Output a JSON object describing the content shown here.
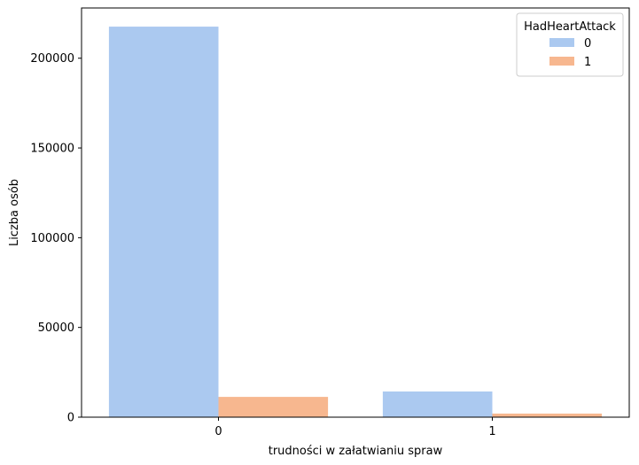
{
  "chart_data": {
    "type": "bar",
    "title": "",
    "xlabel": "trudności w załatwianiu spraw",
    "ylabel": "Liczba osób",
    "categories": [
      "0",
      "1"
    ],
    "series": [
      {
        "name": "0",
        "color": "#abc9f0",
        "values": [
          217600,
          14300
        ]
      },
      {
        "name": "1",
        "color": "#f7b78f",
        "values": [
          11300,
          2000
        ]
      }
    ],
    "ylim": [
      0,
      228000
    ],
    "yticks": [
      0,
      50000,
      100000,
      150000,
      200000
    ],
    "legend": {
      "title": "HadHeartAttack",
      "position": "top-right"
    },
    "grid": false
  }
}
